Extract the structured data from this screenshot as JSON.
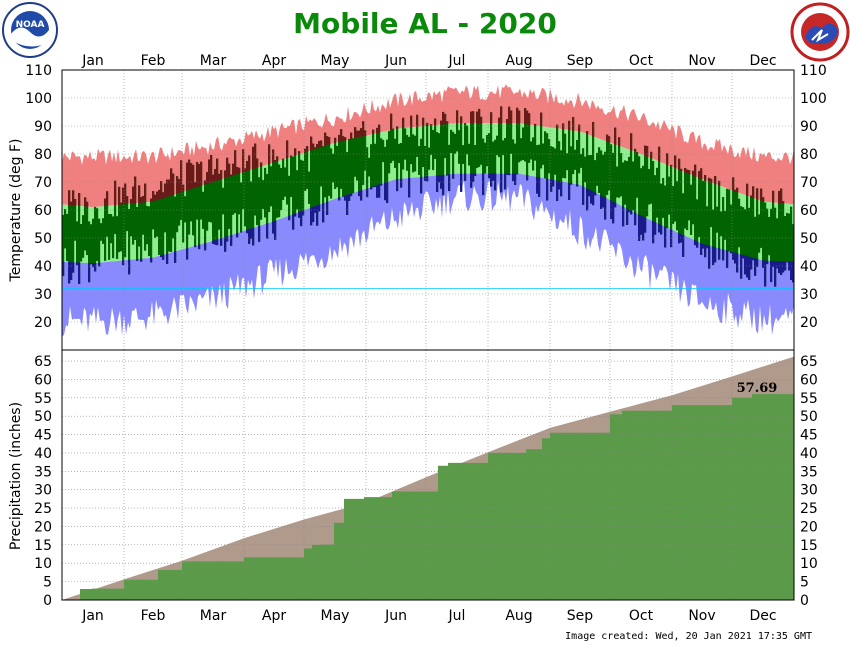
{
  "chart_data": [
    {
      "type": "area",
      "panel": "temperature",
      "title": "Mobile AL - 2020",
      "ylabel": "Temperature (deg F)",
      "ylim": [
        10,
        110
      ],
      "yticks": [
        20,
        30,
        40,
        50,
        60,
        70,
        80,
        90,
        100,
        110
      ],
      "months": [
        "Jan",
        "Feb",
        "Mar",
        "Apr",
        "May",
        "Jun",
        "Jul",
        "Aug",
        "Sep",
        "Oct",
        "Nov",
        "Dec"
      ],
      "grid": true,
      "colors": {
        "record": "#f08080",
        "normal": "#90ee90",
        "actual": "#006400",
        "record_low": "#8a8aff",
        "actual_low": "#1a1a8c",
        "actual_high": "#6b1a1a"
      },
      "series": [
        {
          "values": [
            79,
            79,
            83,
            88,
            93,
            99,
            102,
            102,
            99,
            93,
            84,
            79
          ]
        },
        {
          "values": [
            61,
            63,
            70,
            77,
            84,
            89,
            91,
            91,
            88,
            80,
            71,
            63
          ]
        },
        {
          "values": [
            41,
            43,
            49,
            56,
            64,
            71,
            73,
            73,
            69,
            58,
            48,
            42
          ]
        },
        {
          "values": [
            20,
            22,
            28,
            37,
            46,
            57,
            65,
            64,
            53,
            39,
            27,
            21
          ]
        },
        {
          "values": [
            61,
            68,
            74,
            78,
            82,
            88,
            90,
            90,
            86,
            80,
            68,
            62
          ]
        },
        {
          "values": [
            42,
            47,
            52,
            56,
            64,
            71,
            73,
            73,
            68,
            56,
            47,
            40
          ]
        }
      ]
    },
    {
      "type": "area",
      "panel": "precipitation",
      "ylabel": "Precipitation (inches)",
      "ylim": [
        0,
        68
      ],
      "yticks": [
        0,
        5,
        10,
        15,
        20,
        25,
        30,
        35,
        40,
        45,
        50,
        55,
        60,
        65
      ],
      "months": [
        "Jan",
        "Feb",
        "Mar",
        "Apr",
        "May",
        "Jun",
        "Jul",
        "Aug",
        "Sep",
        "Oct",
        "Nov",
        "Dec"
      ],
      "grid": true,
      "colors": {
        "normal": "#b09a8c",
        "actual": "#5a9a48"
      },
      "series": [
        {
          "days": [
            0,
            31,
            60,
            91,
            121,
            152,
            182,
            213,
            244,
            274,
            305,
            335,
            366
          ],
          "values": [
            0,
            5.6,
            10.7,
            16.8,
            21.9,
            26.5,
            33.4,
            40.2,
            46.8,
            51.2,
            55.7,
            60.8,
            66.2
          ]
        },
        {
          "days": [
            0,
            9,
            15,
            31,
            48,
            60,
            91,
            121,
            125,
            130,
            136,
            141,
            151,
            165,
            188,
            193,
            213,
            232,
            240,
            244,
            274,
            280,
            305,
            335,
            345,
            366
          ],
          "values": [
            0,
            3.0,
            3.1,
            5.5,
            8.2,
            10.5,
            11.6,
            14.0,
            15.0,
            15.1,
            21.0,
            27.5,
            28.0,
            29.5,
            36.5,
            37.3,
            40.0,
            41.0,
            44.0,
            45.5,
            50.5,
            51.5,
            53.0,
            55.0,
            56.0,
            57.69
          ]
        }
      ],
      "total_label": "57.69"
    }
  ],
  "footer": "Image created: Wed, 20 Jan 2021 17:35 GMT",
  "logos": {
    "noaa": {
      "icon": "noaa-logo",
      "text": "NOAA"
    },
    "nws": {
      "icon": "nws-logo"
    }
  }
}
